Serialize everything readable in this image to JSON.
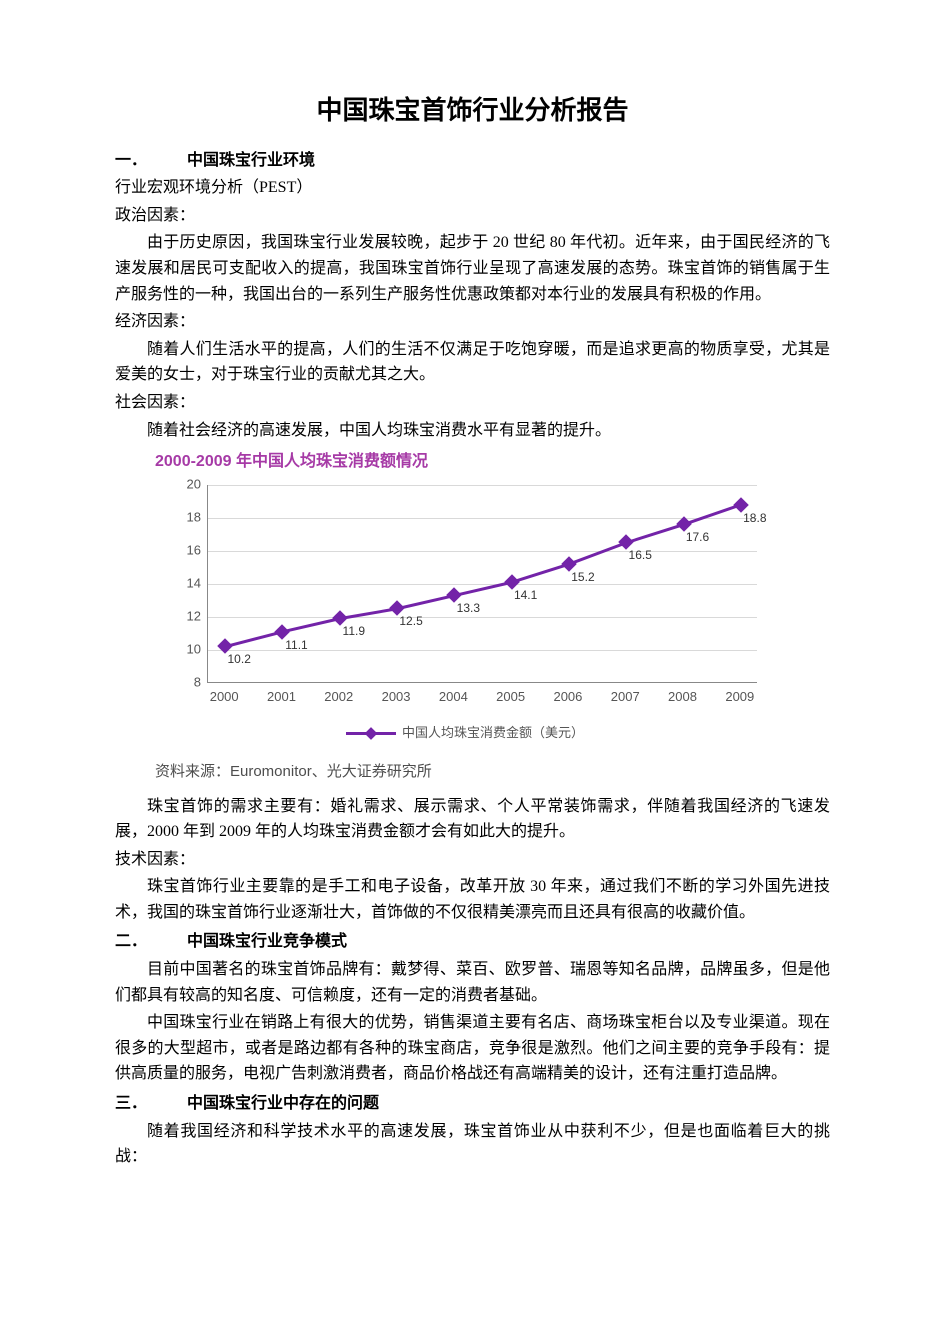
{
  "title": "中国珠宝首饰行业分析报告",
  "sections": [
    {
      "num": "一．",
      "heading": "中国珠宝行业环境",
      "blocks": [
        {
          "type": "subhead",
          "text": "行业宏观环境分析（PEST）"
        },
        {
          "type": "subhead",
          "text": "政治因素："
        },
        {
          "type": "para",
          "text": "由于历史原因，我国珠宝行业发展较晚，起步于 20 世纪 80 年代初。近年来，由于国民经济的飞速发展和居民可支配收入的提高，我国珠宝首饰行业呈现了高速发展的态势。珠宝首饰的销售属于生产服务性的一种，我国出台的一系列生产服务性优惠政策都对本行业的发展具有积极的作用。"
        },
        {
          "type": "subhead",
          "text": "经济因素："
        },
        {
          "type": "para",
          "text": "随着人们生活水平的提高，人们的生活不仅满足于吃饱穿暖，而是追求更高的物质享受，尤其是爱美的女士，对于珠宝行业的贡献尤其之大。"
        },
        {
          "type": "subhead",
          "text": "社会因素："
        },
        {
          "type": "para",
          "text": "随着社会经济的高速发展，中国人均珠宝消费水平有显著的提升。"
        },
        {
          "type": "chart"
        },
        {
          "type": "para",
          "text": "珠宝首饰的需求主要有：婚礼需求、展示需求、个人平常装饰需求，伴随着我国经济的飞速发展，2000 年到 2009 年的人均珠宝消费金额才会有如此大的提升。"
        },
        {
          "type": "subhead",
          "text": "技术因素："
        },
        {
          "type": "para",
          "text": "珠宝首饰行业主要靠的是手工和电子设备，改革开放 30 年来，通过我们不断的学习外国先进技术，我国的珠宝首饰行业逐渐壮大，首饰做的不仅很精美漂亮而且还具有很高的收藏价值。"
        }
      ]
    },
    {
      "num": "二．",
      "heading": "中国珠宝行业竞争模式",
      "blocks": [
        {
          "type": "para",
          "text": "目前中国著名的珠宝首饰品牌有：戴梦得、菜百、欧罗普、瑞恩等知名品牌，品牌虽多，但是他们都具有较高的知名度、可信赖度，还有一定的消费者基础。"
        },
        {
          "type": "para",
          "text": "中国珠宝行业在销路上有很大的优势，销售渠道主要有名店、商场珠宝柜台以及专业渠道。现在很多的大型超市，或者是路边都有各种的珠宝商店，竞争很是激烈。他们之间主要的竞争手段有：提供高质量的服务，电视广告刺激消费者，商品价格战还有高端精美的设计，还有注重打造品牌。"
        }
      ]
    },
    {
      "num": "三．",
      "heading": "中国珠宝行业中存在的问题",
      "blocks": [
        {
          "type": "para",
          "text": "随着我国经济和科学技术水平的高速发展，珠宝首饰业从中获利不少，但是也面临着巨大的挑战："
        }
      ]
    }
  ],
  "chart": {
    "type": "line",
    "title": "2000-2009 年中国人均珠宝消费额情况",
    "title_color": "#a63aa6",
    "title_fontsize": 16,
    "x_labels": [
      "2000",
      "2001",
      "2002",
      "2003",
      "2004",
      "2005",
      "2006",
      "2007",
      "2008",
      "2009"
    ],
    "values": [
      10.2,
      11.1,
      11.9,
      12.5,
      13.3,
      14.1,
      15.2,
      16.5,
      17.6,
      18.8
    ],
    "ymin": 8,
    "ymax": 20,
    "ytick_step": 2,
    "line_color": "#7323a8",
    "line_width": 3,
    "marker_style": "diamond",
    "marker_size": 11,
    "marker_color": "#7323a8",
    "grid_color": "#d9d9d9",
    "axis_color": "#888888",
    "label_color": "#555555",
    "label_fontsize": 13,
    "background_color": "#ffffff",
    "legend_label": "中国人均珠宝消费金额（美元）",
    "source_label": "资料来源：Euromonitor、光大证券研究所",
    "source_color": "#4d4d4d",
    "source_fontsize": 15
  }
}
